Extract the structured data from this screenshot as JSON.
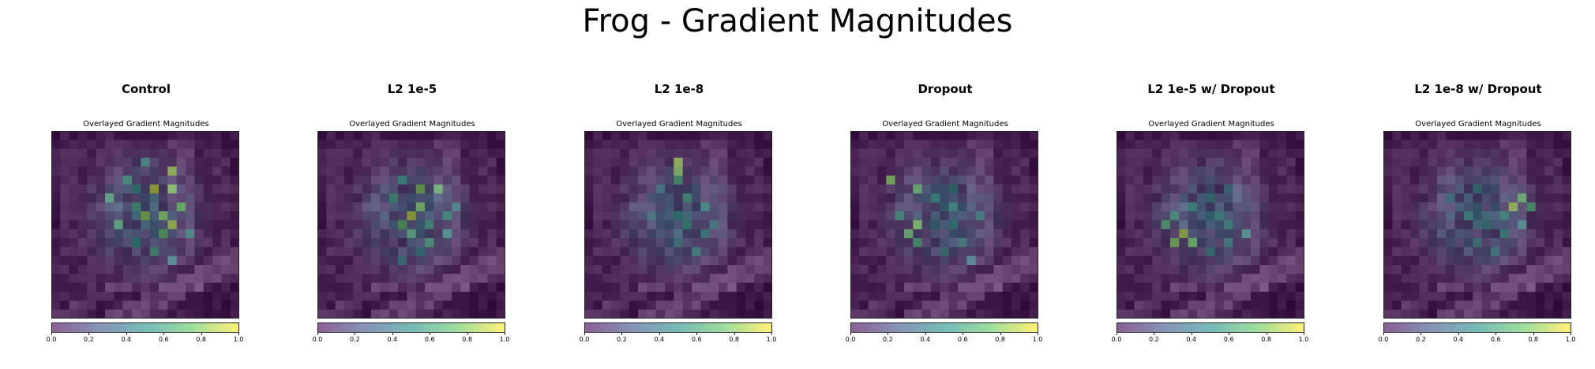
{
  "suptitle": "Frog - Gradient Magnitudes",
  "colormap": [
    "#440154",
    "#3b528b",
    "#21918c",
    "#5ec962",
    "#fde725"
  ],
  "chart_data": [
    {
      "type": "heatmap",
      "title": "Control",
      "subtitle": "Overlayed Gradient Magnitudes",
      "colorbar_ticks": [
        "0.0",
        "0.2",
        "0.4",
        "0.6",
        "0.8",
        "1.0"
      ],
      "clim": [
        0,
        1
      ],
      "hotspots": [
        [
          6,
          11,
          0.92
        ],
        [
          4,
          13,
          0.86
        ],
        [
          6,
          13,
          0.8
        ],
        [
          9,
          10,
          0.82
        ],
        [
          9,
          12,
          0.78
        ],
        [
          10,
          13,
          0.88
        ],
        [
          8,
          14,
          0.75
        ],
        [
          11,
          12,
          0.7
        ],
        [
          5,
          8,
          0.55
        ],
        [
          7,
          6,
          0.6
        ],
        [
          12,
          9,
          0.5
        ],
        [
          10,
          7,
          0.62
        ],
        [
          13,
          11,
          0.58
        ],
        [
          8,
          9,
          0.55
        ],
        [
          6,
          9,
          0.48
        ],
        [
          11,
          15,
          0.45
        ],
        [
          14,
          13,
          0.42
        ],
        [
          3,
          10,
          0.45
        ]
      ]
    },
    {
      "type": "heatmap",
      "title": "L2 1e-5",
      "subtitle": "Overlayed Gradient Magnitudes",
      "colorbar_ticks": [
        "0.0",
        "0.2",
        "0.4",
        "0.6",
        "0.8",
        "1.0"
      ],
      "clim": [
        0,
        1
      ],
      "hotspots": [
        [
          6,
          11,
          0.8
        ],
        [
          6,
          13,
          0.72
        ],
        [
          9,
          10,
          0.9
        ],
        [
          8,
          11,
          0.76
        ],
        [
          10,
          9,
          0.7
        ],
        [
          11,
          10,
          0.62
        ],
        [
          7,
          8,
          0.55
        ],
        [
          12,
          12,
          0.58
        ],
        [
          9,
          14,
          0.52
        ],
        [
          11,
          14,
          0.48
        ],
        [
          5,
          9,
          0.5
        ],
        [
          13,
          11,
          0.45
        ],
        [
          10,
          12,
          0.55
        ],
        [
          14,
          9,
          0.4
        ],
        [
          8,
          15,
          0.42
        ]
      ]
    },
    {
      "type": "heatmap",
      "title": "L2 1e-8",
      "subtitle": "Overlayed Gradient Magnitudes",
      "colorbar_ticks": [
        "0.0",
        "0.2",
        "0.4",
        "0.6",
        "0.8",
        "1.0"
      ],
      "clim": [
        0,
        1
      ],
      "hotspots": [
        [
          3,
          10,
          0.85
        ],
        [
          4,
          10,
          0.8
        ],
        [
          5,
          10,
          0.6
        ],
        [
          7,
          11,
          0.55
        ],
        [
          9,
          10,
          0.5
        ],
        [
          10,
          11,
          0.52
        ],
        [
          8,
          13,
          0.48
        ],
        [
          11,
          13,
          0.45
        ],
        [
          12,
          10,
          0.42
        ],
        [
          6,
          8,
          0.4
        ],
        [
          13,
          12,
          0.45
        ],
        [
          9,
          7,
          0.38
        ],
        [
          10,
          14,
          0.4
        ]
      ]
    },
    {
      "type": "heatmap",
      "title": "Dropout",
      "subtitle": "Overlayed Gradient Magnitudes",
      "colorbar_ticks": [
        "0.0",
        "0.2",
        "0.4",
        "0.6",
        "0.8",
        "1.0"
      ],
      "clim": [
        0,
        1
      ],
      "hotspots": [
        [
          5,
          4,
          0.8
        ],
        [
          6,
          7,
          0.7
        ],
        [
          9,
          5,
          0.55
        ],
        [
          10,
          7,
          0.78
        ],
        [
          11,
          6,
          0.7
        ],
        [
          12,
          7,
          0.62
        ],
        [
          7,
          9,
          0.5
        ],
        [
          8,
          11,
          0.48
        ],
        [
          10,
          11,
          0.46
        ],
        [
          12,
          12,
          0.45
        ],
        [
          13,
          10,
          0.42
        ],
        [
          14,
          13,
          0.4
        ],
        [
          9,
          14,
          0.44
        ],
        [
          6,
          11,
          0.42
        ]
      ]
    },
    {
      "type": "heatmap",
      "title": "L2 1e-5 w/ Dropout",
      "subtitle": "Overlayed Gradient Magnitudes",
      "colorbar_ticks": [
        "0.0",
        "0.2",
        "0.4",
        "0.6",
        "0.8",
        "1.0"
      ],
      "clim": [
        0,
        1
      ],
      "hotspots": [
        [
          11,
          7,
          0.88
        ],
        [
          12,
          6,
          0.8
        ],
        [
          12,
          8,
          0.75
        ],
        [
          10,
          5,
          0.62
        ],
        [
          9,
          6,
          0.55
        ],
        [
          8,
          8,
          0.5
        ],
        [
          9,
          11,
          0.48
        ],
        [
          10,
          12,
          0.52
        ],
        [
          11,
          14,
          0.46
        ],
        [
          7,
          10,
          0.45
        ],
        [
          13,
          10,
          0.44
        ],
        [
          6,
          12,
          0.4
        ],
        [
          12,
          12,
          0.42
        ]
      ]
    },
    {
      "type": "heatmap",
      "title": "L2 1e-8 w/ Dropout",
      "subtitle": "Overlayed Gradient Magnitudes",
      "colorbar_ticks": [
        "0.0",
        "0.2",
        "0.4",
        "0.6",
        "0.8",
        "1.0"
      ],
      "clim": [
        0,
        1
      ],
      "hotspots": [
        [
          8,
          14,
          0.86
        ],
        [
          7,
          15,
          0.72
        ],
        [
          8,
          16,
          0.62
        ],
        [
          9,
          13,
          0.5
        ],
        [
          6,
          10,
          0.45
        ],
        [
          9,
          9,
          0.48
        ],
        [
          10,
          11,
          0.44
        ],
        [
          11,
          13,
          0.46
        ],
        [
          7,
          7,
          0.4
        ],
        [
          12,
          10,
          0.42
        ],
        [
          13,
          12,
          0.4
        ],
        [
          10,
          15,
          0.44
        ]
      ]
    }
  ]
}
